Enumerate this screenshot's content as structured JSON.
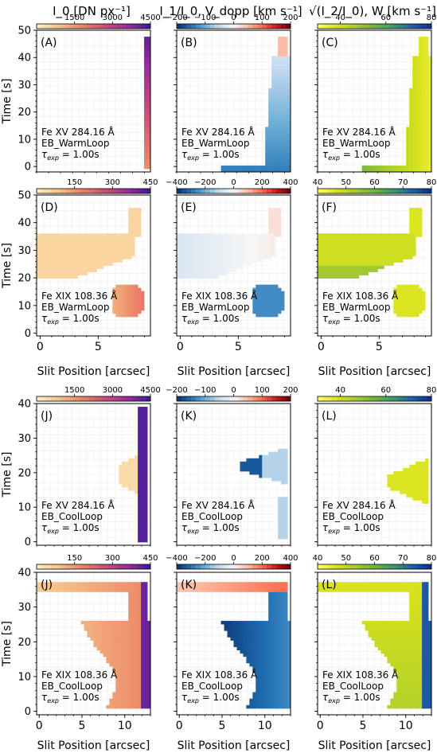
{
  "figure": {
    "column_titles": [
      "I_0 [DN px⁻¹]",
      "I_1/I_0, V_dopp [km s⁻¹]",
      "√(I_2/I_0), W [km s⁻¹]"
    ],
    "xlabel": "Slit Position [arcsec]",
    "ylabel": "Time [s]"
  },
  "colors": {
    "intensity": [
      "#fdf2c3",
      "#f6c188",
      "#eb8466",
      "#cf4d7a",
      "#9b2c9a",
      "#3a1a9b"
    ],
    "doppler": [
      "#08306b",
      "#2171b5",
      "#6baed6",
      "#c6dbef",
      "#f7f7f7",
      "#fcbba1",
      "#fb6a4a",
      "#cb181d",
      "#67000d"
    ],
    "width": [
      "#ffff66",
      "#d8e21c",
      "#a8cc2e",
      "#6fb53a",
      "#3a9a6a",
      "#1f5fa5",
      "#0b2f8f"
    ]
  },
  "chart_data": [
    {
      "type": "heatmap",
      "panel_label": "(A)",
      "quantity": "intensity",
      "cbar_ticks": [
        "1500",
        "3000",
        "4500"
      ],
      "cbar_range": [
        0,
        4500
      ],
      "xlim": [
        0,
        9.5
      ],
      "ylim": [
        -2,
        50
      ],
      "xticks": [],
      "yticks": [
        0,
        10,
        20,
        30,
        40,
        50
      ],
      "line": "Fe XV 284.16 Å",
      "model": "EB_WarmLoop",
      "texp": "= 1.00s"
    },
    {
      "type": "heatmap",
      "panel_label": "(B)",
      "quantity": "doppler",
      "cbar_ticks": [
        "−200",
        "−100",
        "0",
        "100",
        "200"
      ],
      "cbar_range": [
        -200,
        200
      ],
      "xlim": [
        0,
        9.5
      ],
      "ylim": [
        -2,
        50
      ],
      "xticks": [],
      "yticks": [
        0,
        10,
        20,
        30,
        40,
        50
      ],
      "line": "Fe XV 284.16 Å",
      "model": "EB_WarmLoop",
      "texp": "= 1.00s"
    },
    {
      "type": "heatmap",
      "panel_label": "(C)",
      "quantity": "width",
      "cbar_ticks": [
        "40",
        "60",
        "80"
      ],
      "cbar_range": [
        30,
        80
      ],
      "xlim": [
        0,
        9.5
      ],
      "ylim": [
        -2,
        50
      ],
      "xticks": [],
      "yticks": [
        0,
        10,
        20,
        30,
        40,
        50
      ],
      "line": "Fe XV 284.16 Å",
      "model": "EB_WarmLoop",
      "texp": "= 1.00s"
    },
    {
      "type": "heatmap",
      "panel_label": "(D)",
      "quantity": "intensity",
      "cbar_ticks": [
        "150",
        "300",
        "450"
      ],
      "cbar_range": [
        0,
        450
      ],
      "xlim": [
        -0.3,
        9.5
      ],
      "ylim": [
        -1,
        50
      ],
      "xticks": [
        0,
        5
      ],
      "yticks": [
        0,
        10,
        20,
        30,
        40,
        50
      ],
      "line": "Fe XIX 108.36 Å",
      "model": "EB_WarmLoop",
      "texp": "= 1.00s"
    },
    {
      "type": "heatmap",
      "panel_label": "(E)",
      "quantity": "doppler",
      "cbar_ticks": [
        "−400",
        "−200",
        "0",
        "200",
        "400"
      ],
      "cbar_range": [
        -400,
        400
      ],
      "xlim": [
        -0.3,
        9.5
      ],
      "ylim": [
        -1,
        50
      ],
      "xticks": [
        0,
        5
      ],
      "yticks": [
        0,
        10,
        20,
        30,
        40,
        50
      ],
      "line": "Fe XIX 108.36 Å",
      "model": "EB_WarmLoop",
      "texp": "= 1.00s"
    },
    {
      "type": "heatmap",
      "panel_label": "(F)",
      "quantity": "width",
      "cbar_ticks": [
        "40",
        "50",
        "60",
        "70",
        "80"
      ],
      "cbar_range": [
        40,
        80
      ],
      "xlim": [
        -0.3,
        9.5
      ],
      "ylim": [
        -1,
        50
      ],
      "xticks": [
        0,
        5
      ],
      "yticks": [
        0,
        10,
        20,
        30,
        40,
        50
      ],
      "line": "Fe XIX 108.36 Å",
      "model": "EB_WarmLoop",
      "texp": "= 1.00s"
    },
    {
      "type": "heatmap",
      "panel_label": "(J)",
      "quantity": "intensity",
      "cbar_ticks": [
        "1500",
        "3000",
        "4500"
      ],
      "cbar_range": [
        0,
        4500
      ],
      "xlim": [
        0,
        13
      ],
      "ylim": [
        -1,
        40
      ],
      "xticks": [],
      "yticks": [
        0,
        10,
        20,
        30,
        40
      ],
      "line": "Fe XV 284.16 Å",
      "model": "EB_CoolLoop",
      "texp": "= 1.00s"
    },
    {
      "type": "heatmap",
      "panel_label": "(K)",
      "quantity": "doppler",
      "cbar_ticks": [
        "−200",
        "−100",
        "0",
        "100",
        "200"
      ],
      "cbar_range": [
        -200,
        200
      ],
      "xlim": [
        0,
        13
      ],
      "ylim": [
        -1,
        40
      ],
      "xticks": [],
      "yticks": [
        0,
        10,
        20,
        30,
        40
      ],
      "line": "Fe XV 284.16 Å",
      "model": "EB_CoolLoop",
      "texp": "= 1.00s"
    },
    {
      "type": "heatmap",
      "panel_label": "(L)",
      "quantity": "width",
      "cbar_ticks": [
        "40",
        "60",
        "80"
      ],
      "cbar_range": [
        30,
        80
      ],
      "xlim": [
        0,
        13
      ],
      "ylim": [
        -1,
        40
      ],
      "xticks": [],
      "yticks": [
        0,
        10,
        20,
        30,
        40
      ],
      "line": "Fe XV 284.16 Å",
      "model": "EB_CoolLoop",
      "texp": "= 1.00s"
    },
    {
      "type": "heatmap",
      "panel_label": "(J)",
      "quantity": "intensity",
      "cbar_ticks": [
        "150",
        "300",
        "450"
      ],
      "cbar_range": [
        0,
        450
      ],
      "xlim": [
        -0.3,
        13
      ],
      "ylim": [
        -1,
        40
      ],
      "xticks": [
        0,
        5,
        10
      ],
      "yticks": [
        0,
        10,
        20,
        30,
        40
      ],
      "line": "Fe XIX 108.36 Å",
      "model": "EB_CoolLoop",
      "texp": "= 1.00s"
    },
    {
      "type": "heatmap",
      "panel_label": "(K)",
      "quantity": "doppler",
      "cbar_ticks": [
        "−400",
        "−200",
        "0",
        "200",
        "400"
      ],
      "cbar_range": [
        -400,
        400
      ],
      "xlim": [
        -0.3,
        13
      ],
      "ylim": [
        -1,
        40
      ],
      "xticks": [
        0,
        5,
        10
      ],
      "yticks": [
        0,
        10,
        20,
        30,
        40
      ],
      "line": "Fe XIX 108.36 Å",
      "model": "EB_CoolLoop",
      "texp": "= 1.00s"
    },
    {
      "type": "heatmap",
      "panel_label": "(L)",
      "quantity": "width",
      "cbar_ticks": [
        "40",
        "50",
        "60",
        "70",
        "80"
      ],
      "cbar_range": [
        40,
        80
      ],
      "xlim": [
        -0.3,
        13
      ],
      "ylim": [
        -1,
        40
      ],
      "xticks": [
        0,
        5,
        10
      ],
      "yticks": [
        0,
        10,
        20,
        30,
        40
      ],
      "line": "Fe XIX 108.36 Å",
      "model": "EB_CoolLoop",
      "texp": "= 1.00s"
    }
  ]
}
